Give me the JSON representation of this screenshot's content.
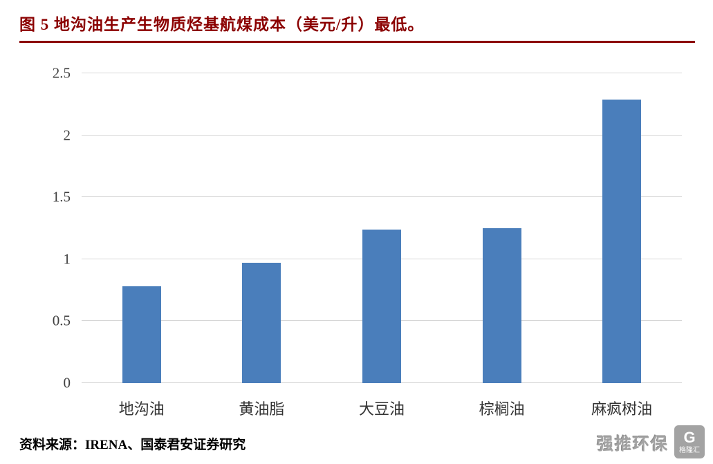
{
  "header": {
    "title": "图 5 地沟油生产生物质烃基航煤成本（美元/升）最低。",
    "accent_color": "#8B0000"
  },
  "chart_data": {
    "type": "bar",
    "categories": [
      "地沟油",
      "黄油脂",
      "大豆油",
      "棕榈油",
      "麻疯树油"
    ],
    "values": [
      0.78,
      0.97,
      1.24,
      1.25,
      2.29
    ],
    "title": "图 5 地沟油生产生物质烃基航煤成本（美元/升）最低。",
    "xlabel": "",
    "ylabel": "",
    "ylim": [
      0,
      2.5
    ],
    "ytick_step": 0.5,
    "yticks": [
      "0",
      "0.5",
      "1",
      "1.5",
      "2",
      "2.5"
    ],
    "grid": true,
    "legend": "none",
    "bar_color": "#4A7EBB",
    "gridline_color": "#D6D6D6"
  },
  "footer": {
    "source": "资料来源：IRENA、国泰君安证券研究"
  },
  "watermark": {
    "text": "强推环保",
    "logo_letter": "G",
    "logo_text": "格隆汇"
  }
}
